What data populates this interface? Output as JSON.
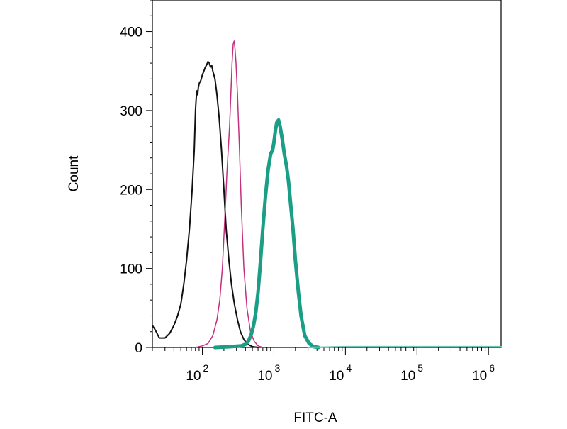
{
  "chart_data": {
    "type": "line",
    "title": "",
    "xlabel": "FITC-A",
    "ylabel": "Count",
    "x_scale": "log",
    "xlim": [
      20,
      1500000
    ],
    "ylim": [
      0,
      440
    ],
    "grid": false,
    "legend": "none",
    "y_ticks": [
      0,
      100,
      200,
      300,
      400
    ],
    "y_tick_labels": [
      "0",
      "100",
      "200",
      "300",
      "400"
    ],
    "x_ticks": [
      {
        "value": 100,
        "base": "10",
        "exp": "2"
      },
      {
        "value": 1000,
        "base": "10",
        "exp": "3"
      },
      {
        "value": 10000,
        "base": "10",
        "exp": "4"
      },
      {
        "value": 100000,
        "base": "10",
        "exp": "5"
      },
      {
        "value": 1000000,
        "base": "10",
        "exp": "6"
      }
    ],
    "series": [
      {
        "color": "#111111",
        "stroke_width": 2,
        "points": [
          [
            20,
            28
          ],
          [
            22,
            22
          ],
          [
            25,
            12
          ],
          [
            30,
            12
          ],
          [
            35,
            18
          ],
          [
            40,
            28
          ],
          [
            45,
            40
          ],
          [
            50,
            55
          ],
          [
            55,
            80
          ],
          [
            60,
            110
          ],
          [
            66,
            150
          ],
          [
            72,
            200
          ],
          [
            77,
            250
          ],
          [
            80,
            300
          ],
          [
            82,
            315
          ],
          [
            84,
            325
          ],
          [
            86,
            320
          ],
          [
            88,
            330
          ],
          [
            91,
            335
          ],
          [
            95,
            338
          ],
          [
            100,
            345
          ],
          [
            105,
            350
          ],
          [
            110,
            355
          ],
          [
            115,
            358
          ],
          [
            120,
            362
          ],
          [
            125,
            360
          ],
          [
            130,
            355
          ],
          [
            135,
            357
          ],
          [
            140,
            350
          ],
          [
            150,
            340
          ],
          [
            160,
            320
          ],
          [
            172,
            290
          ],
          [
            185,
            250
          ],
          [
            200,
            200
          ],
          [
            215,
            150
          ],
          [
            235,
            110
          ],
          [
            255,
            80
          ],
          [
            280,
            55
          ],
          [
            310,
            35
          ],
          [
            340,
            20
          ],
          [
            380,
            10
          ],
          [
            430,
            4
          ],
          [
            500,
            1
          ],
          [
            600,
            0
          ]
        ]
      },
      {
        "color": "#c2307f",
        "stroke_width": 1.5,
        "points": [
          [
            80,
            0
          ],
          [
            100,
            2
          ],
          [
            120,
            5
          ],
          [
            140,
            15
          ],
          [
            160,
            35
          ],
          [
            175,
            60
          ],
          [
            190,
            100
          ],
          [
            200,
            140
          ],
          [
            210,
            180
          ],
          [
            220,
            220
          ],
          [
            230,
            250
          ],
          [
            240,
            280
          ],
          [
            250,
            320
          ],
          [
            260,
            360
          ],
          [
            270,
            385
          ],
          [
            278,
            388
          ],
          [
            285,
            380
          ],
          [
            295,
            360
          ],
          [
            310,
            320
          ],
          [
            330,
            250
          ],
          [
            350,
            180
          ],
          [
            380,
            100
          ],
          [
            420,
            50
          ],
          [
            470,
            20
          ],
          [
            530,
            8
          ],
          [
            600,
            2
          ],
          [
            700,
            0
          ]
        ]
      },
      {
        "color": "#1a9e86",
        "stroke_width": 5,
        "points": [
          [
            150,
            0
          ],
          [
            250,
            1
          ],
          [
            350,
            2
          ],
          [
            400,
            4
          ],
          [
            440,
            8
          ],
          [
            480,
            16
          ],
          [
            520,
            28
          ],
          [
            560,
            45
          ],
          [
            600,
            70
          ],
          [
            650,
            110
          ],
          [
            700,
            150
          ],
          [
            760,
            190
          ],
          [
            830,
            225
          ],
          [
            900,
            245
          ],
          [
            960,
            250
          ],
          [
            1000,
            260
          ],
          [
            1050,
            275
          ],
          [
            1100,
            285
          ],
          [
            1160,
            288
          ],
          [
            1220,
            280
          ],
          [
            1300,
            265
          ],
          [
            1400,
            245
          ],
          [
            1500,
            230
          ],
          [
            1600,
            210
          ],
          [
            1700,
            185
          ],
          [
            1850,
            150
          ],
          [
            2000,
            110
          ],
          [
            2200,
            70
          ],
          [
            2400,
            40
          ],
          [
            2700,
            15
          ],
          [
            3100,
            5
          ],
          [
            3600,
            1
          ],
          [
            4200,
            0
          ]
        ]
      },
      {
        "color": "#6fc4b3",
        "stroke_width": 2,
        "points": [
          [
            3000,
            0
          ],
          [
            10000,
            1
          ],
          [
            100000,
            1
          ],
          [
            1500000,
            1
          ]
        ]
      }
    ]
  }
}
